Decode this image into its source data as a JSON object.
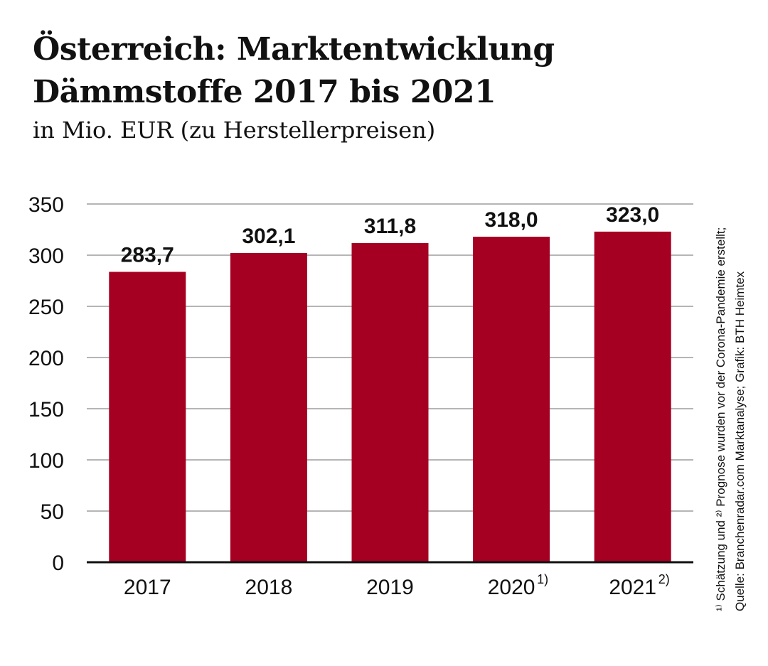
{
  "chart_data": {
    "type": "bar",
    "title_line1": "Österreich: Marktentwicklung",
    "title_line2": "Dämmstoffe 2017 bis 2021",
    "subtitle": "in Mio. EUR (zu Herstellerpreisen)",
    "categories": [
      "2017",
      "2018",
      "2019",
      "2020",
      "2021"
    ],
    "category_footnotes": [
      "",
      "",
      "",
      "1)",
      "2)"
    ],
    "values": [
      283.7,
      302.1,
      311.8,
      318.0,
      323.0
    ],
    "data_labels": [
      "283,7",
      "302,1",
      "311,8",
      "318,0",
      "323,0"
    ],
    "ylim": [
      0,
      350
    ],
    "yticks": [
      0,
      50,
      100,
      150,
      200,
      250,
      300,
      350
    ],
    "grid": true,
    "bar_color": "#a50021",
    "footnote": "¹⁾ Schätzung und ²⁾ Prognose wurden vor der Corona-Pandemie erstellt;",
    "source": "Quelle: Branchenradar.com Marktanalyse; Grafik: BTH Heimtex"
  }
}
